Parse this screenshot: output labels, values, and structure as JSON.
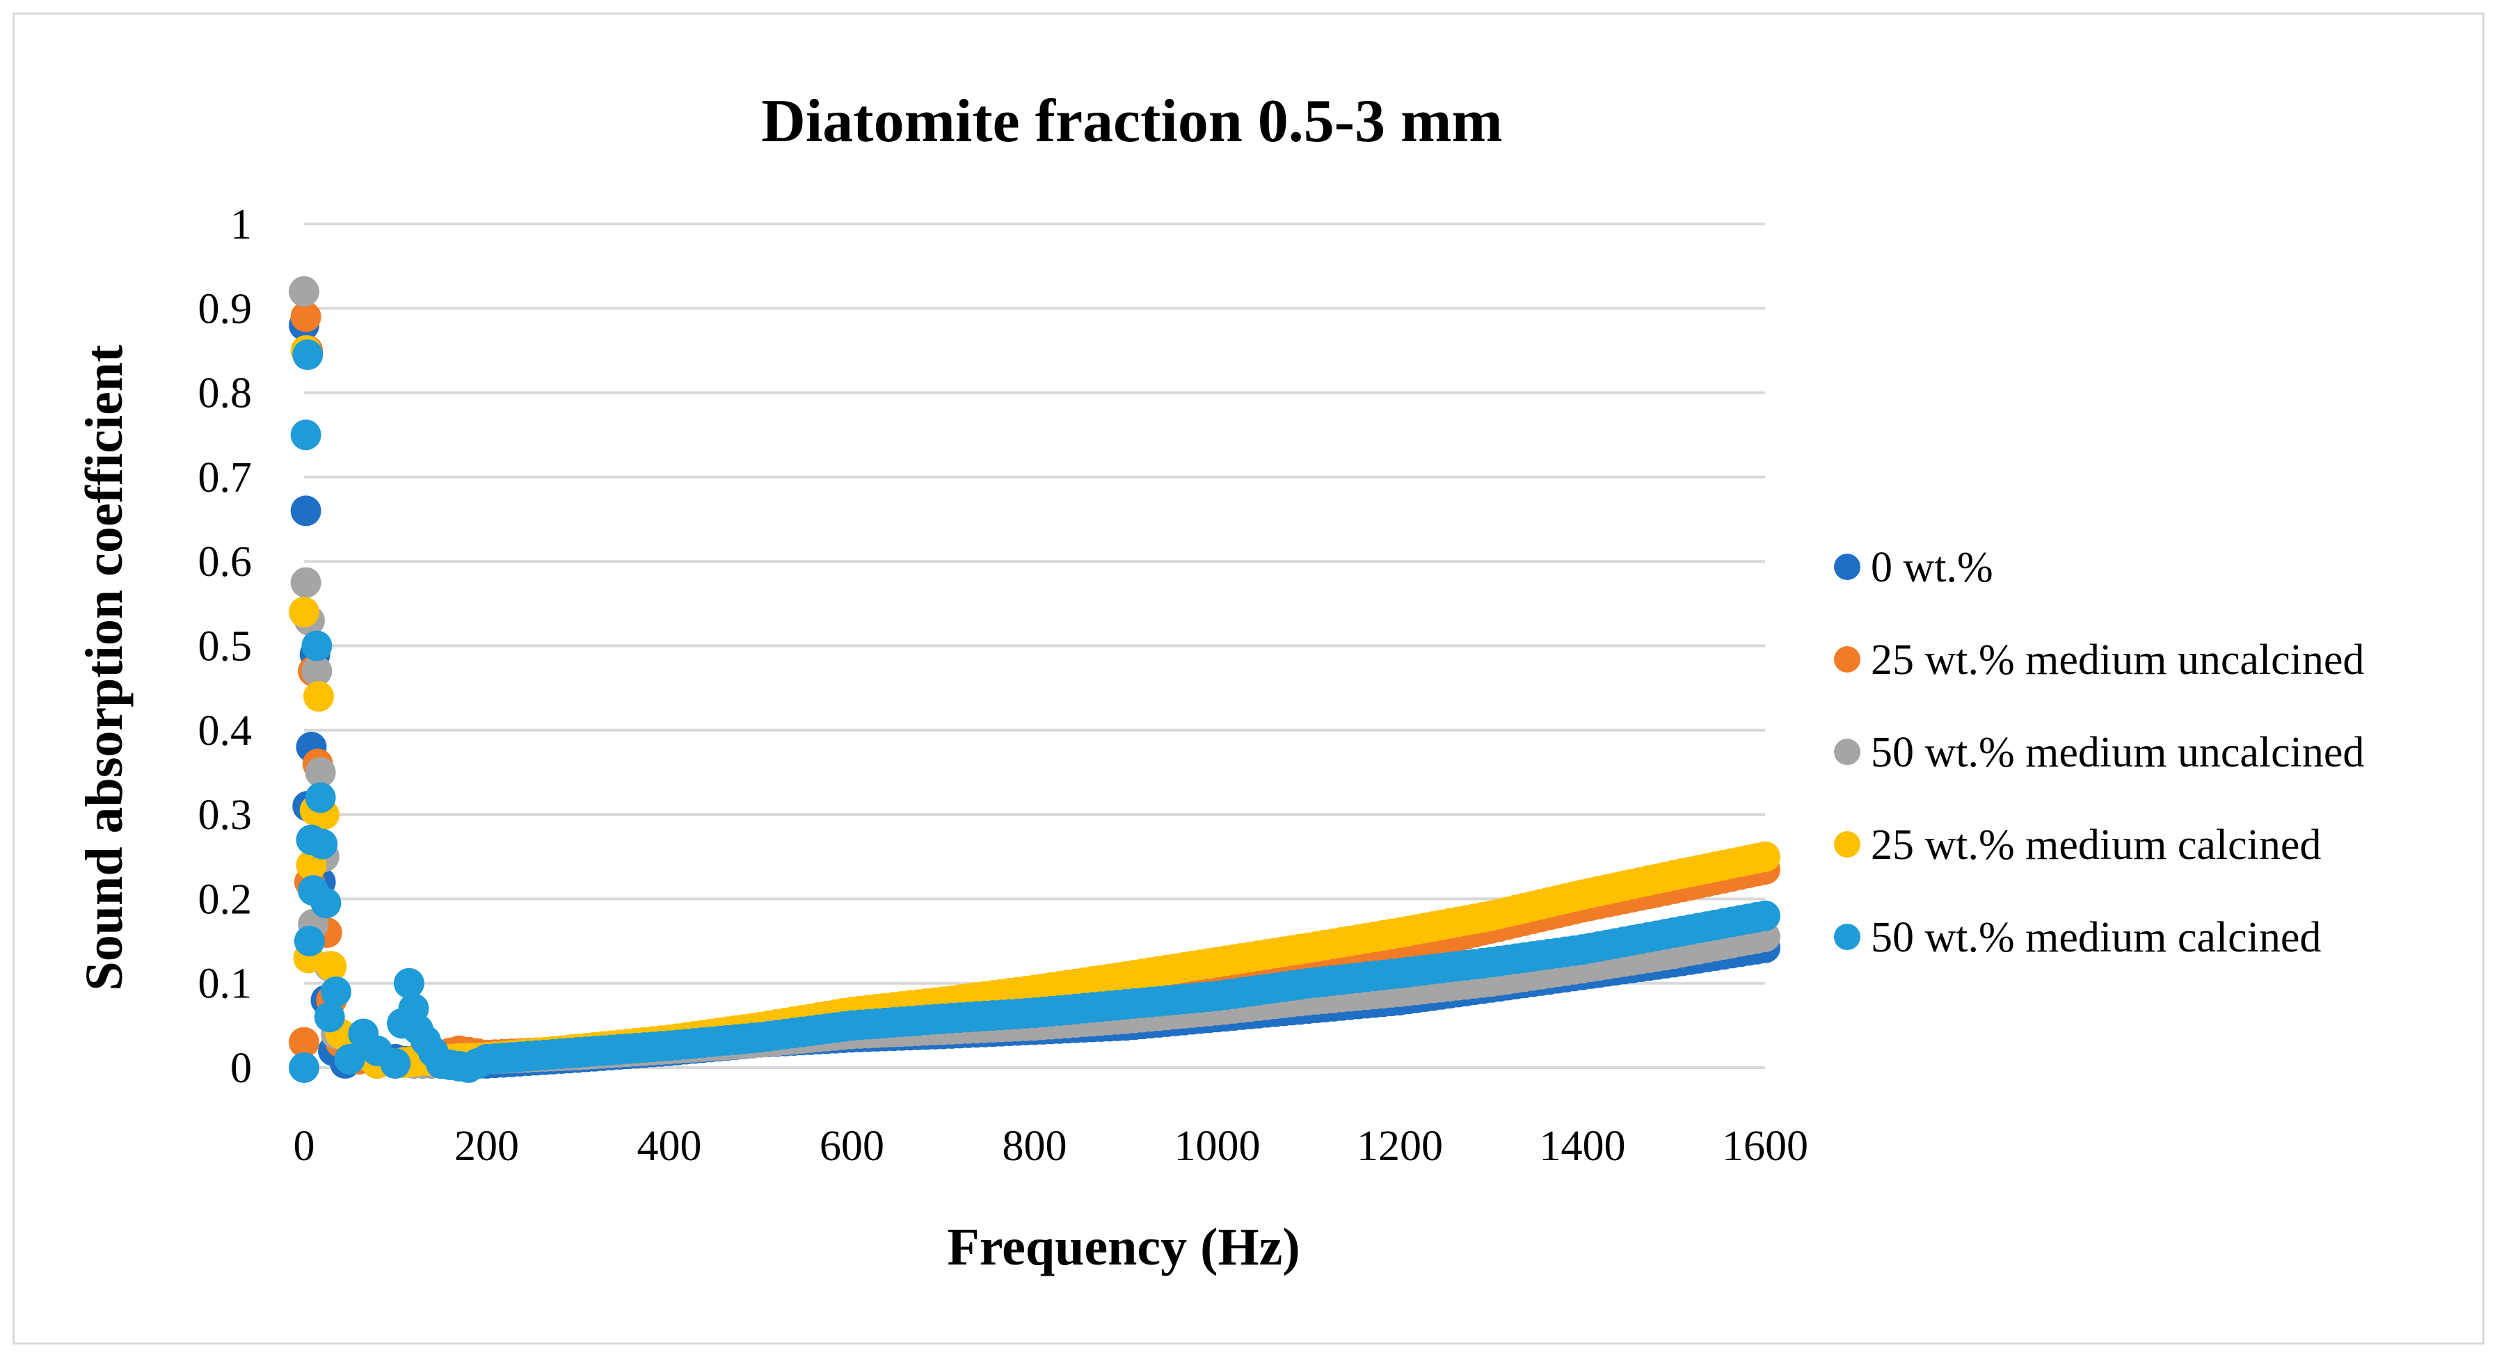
{
  "chart_data": {
    "type": "scatter",
    "title": "Diatomite fraction 0.5-3 mm",
    "xlabel": "Frequency (Hz)",
    "ylabel": "Sound absorption coefficient",
    "xlim": [
      0,
      1600
    ],
    "ylim": [
      0,
      1
    ],
    "x_ticks": [
      "0",
      "200",
      "400",
      "600",
      "800",
      "1000",
      "1200",
      "1400",
      "1600"
    ],
    "y_ticks": [
      "0",
      "0.1",
      "0.2",
      "0.3",
      "0.4",
      "0.5",
      "0.6",
      "0.7",
      "0.8",
      "0.9",
      "1"
    ],
    "grid": true,
    "legend_position": "right",
    "series": [
      {
        "name": "0 wt.%",
        "color": "#1f6fc5",
        "points": [
          [
            0,
            0.88
          ],
          [
            2,
            0.66
          ],
          [
            4,
            0.31
          ],
          [
            8,
            0.38
          ],
          [
            12,
            0.49
          ],
          [
            18,
            0.22
          ],
          [
            24,
            0.08
          ],
          [
            32,
            0.02
          ],
          [
            45,
            0.005
          ],
          [
            60,
            0.01
          ],
          [
            80,
            0.005
          ],
          [
            100,
            0.01
          ],
          [
            120,
            0.005
          ],
          [
            150,
            0.005
          ],
          [
            200,
            0.005
          ],
          [
            300,
            0.012
          ],
          [
            400,
            0.02
          ],
          [
            500,
            0.03
          ],
          [
            600,
            0.036
          ],
          [
            700,
            0.04
          ],
          [
            800,
            0.045
          ],
          [
            900,
            0.05
          ],
          [
            1000,
            0.06
          ],
          [
            1100,
            0.07
          ],
          [
            1200,
            0.08
          ],
          [
            1300,
            0.095
          ],
          [
            1400,
            0.11
          ],
          [
            1500,
            0.125
          ],
          [
            1600,
            0.142
          ]
        ]
      },
      {
        "name": "25 wt.% medium uncalcined",
        "color": "#f27b28",
        "points": [
          [
            0,
            0.03
          ],
          [
            2,
            0.89
          ],
          [
            4,
            0.85
          ],
          [
            6,
            0.22
          ],
          [
            10,
            0.47
          ],
          [
            15,
            0.36
          ],
          [
            20,
            0.25
          ],
          [
            25,
            0.16
          ],
          [
            30,
            0.08
          ],
          [
            40,
            0.03
          ],
          [
            60,
            0.01
          ],
          [
            80,
            0.005
          ],
          [
            100,
            0.005
          ],
          [
            130,
            0.01
          ],
          [
            170,
            0.02
          ],
          [
            200,
            0.015
          ],
          [
            300,
            0.02
          ],
          [
            400,
            0.03
          ],
          [
            500,
            0.045
          ],
          [
            600,
            0.06
          ],
          [
            700,
            0.072
          ],
          [
            800,
            0.082
          ],
          [
            900,
            0.095
          ],
          [
            1000,
            0.11
          ],
          [
            1100,
            0.125
          ],
          [
            1200,
            0.14
          ],
          [
            1300,
            0.165
          ],
          [
            1400,
            0.19
          ],
          [
            1500,
            0.212
          ],
          [
            1600,
            0.235
          ]
        ]
      },
      {
        "name": "50 wt.% medium uncalcined",
        "color": "#a5a5a5",
        "points": [
          [
            0,
            0.92
          ],
          [
            2,
            0.575
          ],
          [
            6,
            0.53
          ],
          [
            10,
            0.17
          ],
          [
            14,
            0.47
          ],
          [
            18,
            0.35
          ],
          [
            22,
            0.25
          ],
          [
            28,
            0.12
          ],
          [
            35,
            0.04
          ],
          [
            50,
            0.01
          ],
          [
            80,
            0.005
          ],
          [
            120,
            0.005
          ],
          [
            160,
            0.005
          ],
          [
            200,
            0.01
          ],
          [
            300,
            0.015
          ],
          [
            400,
            0.022
          ],
          [
            500,
            0.03
          ],
          [
            600,
            0.04
          ],
          [
            700,
            0.045
          ],
          [
            800,
            0.05
          ],
          [
            900,
            0.058
          ],
          [
            1000,
            0.068
          ],
          [
            1100,
            0.08
          ],
          [
            1200,
            0.09
          ],
          [
            1300,
            0.102
          ],
          [
            1400,
            0.118
          ],
          [
            1500,
            0.135
          ],
          [
            1600,
            0.155
          ]
        ]
      },
      {
        "name": "25 wt.% medium calcined",
        "color": "#ffc000",
        "points": [
          [
            0,
            0.54
          ],
          [
            2,
            0.85
          ],
          [
            5,
            0.13
          ],
          [
            8,
            0.24
          ],
          [
            12,
            0.305
          ],
          [
            16,
            0.44
          ],
          [
            22,
            0.3
          ],
          [
            30,
            0.12
          ],
          [
            40,
            0.04
          ],
          [
            60,
            0.015
          ],
          [
            80,
            0.005
          ],
          [
            100,
            0.005
          ],
          [
            150,
            0.01
          ],
          [
            200,
            0.012
          ],
          [
            300,
            0.022
          ],
          [
            400,
            0.033
          ],
          [
            500,
            0.048
          ],
          [
            600,
            0.066
          ],
          [
            700,
            0.078
          ],
          [
            800,
            0.092
          ],
          [
            900,
            0.108
          ],
          [
            1000,
            0.125
          ],
          [
            1100,
            0.142
          ],
          [
            1200,
            0.16
          ],
          [
            1300,
            0.18
          ],
          [
            1400,
            0.205
          ],
          [
            1500,
            0.228
          ],
          [
            1600,
            0.25
          ]
        ]
      },
      {
        "name": "50 wt.% medium calcined",
        "color": "#1f9bd8",
        "points": [
          [
            0,
            0.0
          ],
          [
            2,
            0.75
          ],
          [
            4,
            0.845
          ],
          [
            6,
            0.15
          ],
          [
            8,
            0.27
          ],
          [
            10,
            0.21
          ],
          [
            14,
            0.5
          ],
          [
            18,
            0.32
          ],
          [
            20,
            0.265
          ],
          [
            24,
            0.195
          ],
          [
            28,
            0.06
          ],
          [
            35,
            0.09
          ],
          [
            50,
            0.01
          ],
          [
            65,
            0.04
          ],
          [
            80,
            0.02
          ],
          [
            100,
            0.005
          ],
          [
            115,
            0.1
          ],
          [
            120,
            0.07
          ],
          [
            125,
            0.045
          ],
          [
            150,
            0.005
          ],
          [
            180,
            0.0
          ],
          [
            200,
            0.01
          ],
          [
            300,
            0.018
          ],
          [
            400,
            0.026
          ],
          [
            500,
            0.036
          ],
          [
            600,
            0.05
          ],
          [
            700,
            0.058
          ],
          [
            800,
            0.065
          ],
          [
            900,
            0.075
          ],
          [
            1000,
            0.085
          ],
          [
            1100,
            0.1
          ],
          [
            1200,
            0.112
          ],
          [
            1300,
            0.125
          ],
          [
            1400,
            0.14
          ],
          [
            1500,
            0.16
          ],
          [
            1600,
            0.18
          ]
        ]
      }
    ]
  }
}
